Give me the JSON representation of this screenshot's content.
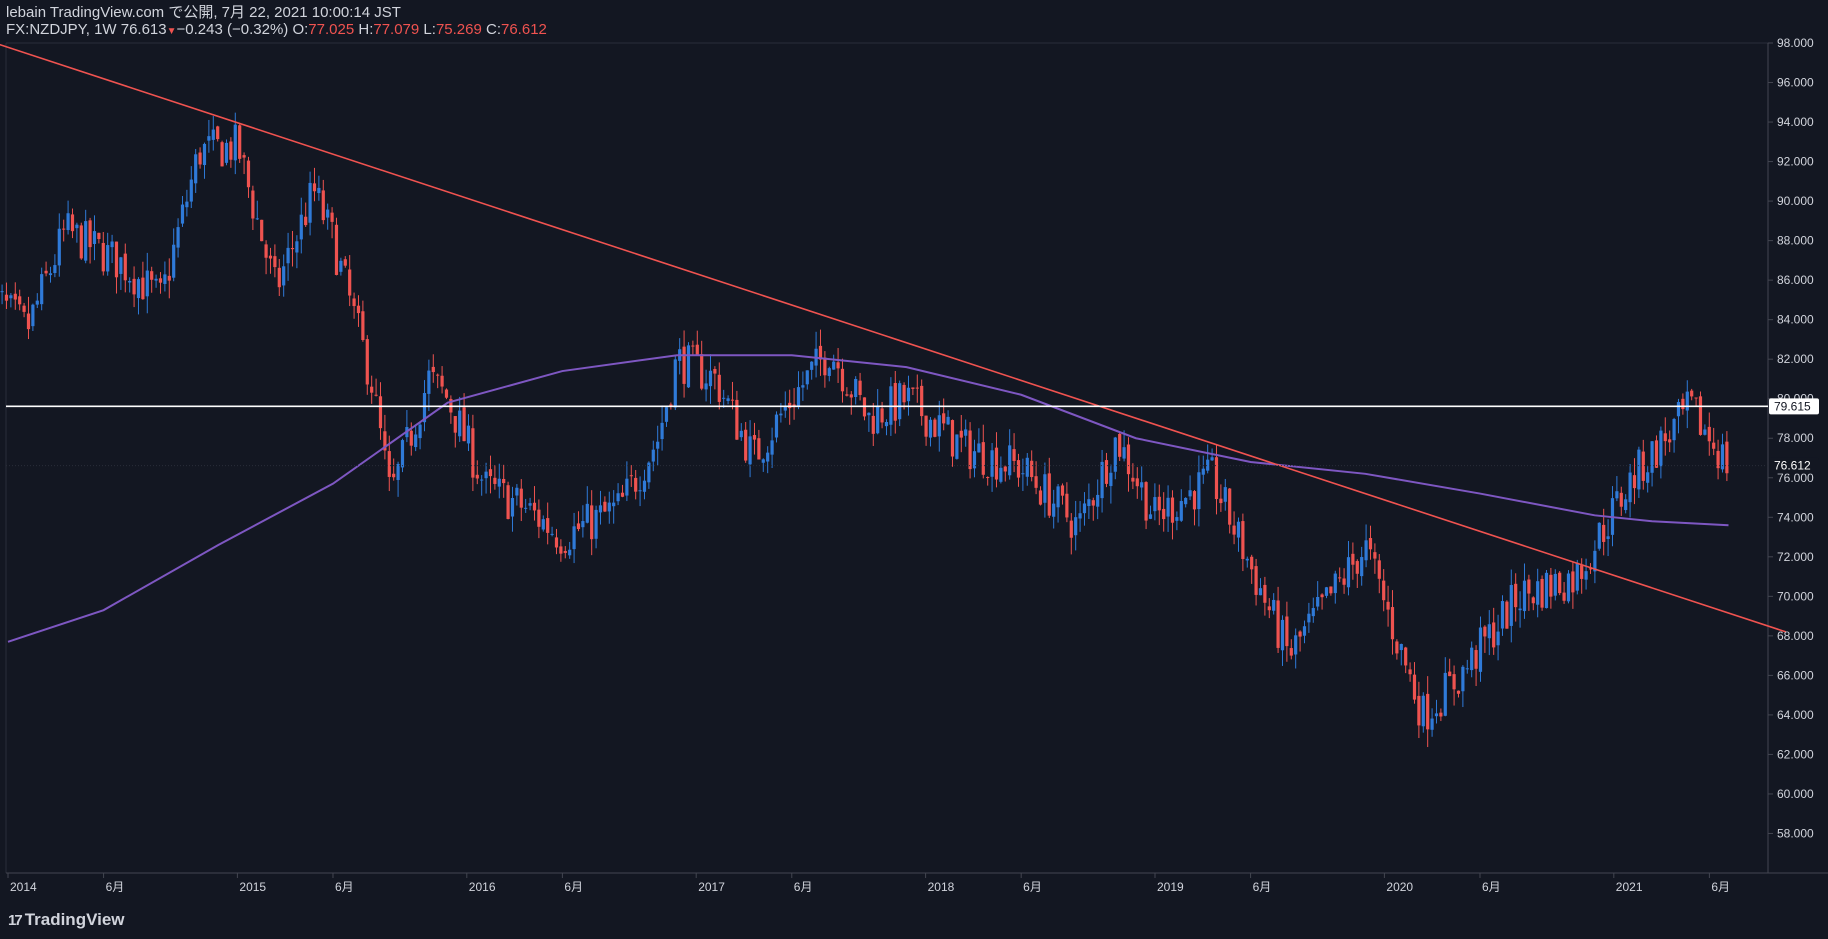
{
  "header": {
    "line1": "lebain TradingView.com で公開, 7月 22, 2021 10:00:14 JST",
    "symbol": "FX:NZDJPY, 1W 76.613",
    "change": "−0.243 (−0.32%)",
    "o_label": "O:",
    "o_value": "77.025",
    "h_label": "H:",
    "h_value": "77.079",
    "l_label": "L:",
    "l_value": "75.269",
    "c_label": "C:",
    "c_value": "76.612"
  },
  "footer": {
    "brand": "TradingView"
  },
  "colors": {
    "background": "#131722",
    "up": "#2f7ad8",
    "down": "#ef5350",
    "trendline": "#f05350",
    "ma": "#7e57c2",
    "hline": "#ffffff",
    "axis_text": "#d1d4dc"
  },
  "chart_data": {
    "type": "candlestick",
    "symbol": "FX:NZDJPY",
    "interval": "1W",
    "ylim": [
      56,
      98
    ],
    "y_ticks": [
      "98.000",
      "96.000",
      "94.000",
      "92.000",
      "90.000",
      "88.000",
      "86.000",
      "84.000",
      "82.000",
      "80.000",
      "78.000",
      "76.000",
      "74.000",
      "72.000",
      "70.000",
      "68.000",
      "66.000",
      "64.000",
      "62.000",
      "60.000",
      "58.000"
    ],
    "x_ticks": [
      "2014",
      "6月",
      "2015",
      "6月",
      "2016",
      "6月",
      "2017",
      "6月",
      "2018",
      "6月",
      "2019",
      "6月",
      "2020",
      "6月",
      "2021",
      "6月"
    ],
    "price_labels": {
      "horizontal_line": "79.615",
      "last_price": "76.612"
    },
    "trendline": {
      "from": {
        "date": "2013-12",
        "price": 98.1
      },
      "to": {
        "date": "2021-10",
        "price": 68.2
      }
    },
    "horizontal_line": 79.615,
    "moving_average": [
      [
        "2014-01",
        67.7
      ],
      [
        "2014-06",
        69.3
      ],
      [
        "2014-12",
        72.6
      ],
      [
        "2015-06",
        75.7
      ],
      [
        "2015-12",
        79.8
      ],
      [
        "2016-06",
        81.4
      ],
      [
        "2016-12",
        82.2
      ],
      [
        "2017-06",
        82.2
      ],
      [
        "2017-12",
        81.6
      ],
      [
        "2018-06",
        80.2
      ],
      [
        "2018-12",
        78.0
      ],
      [
        "2019-06",
        76.8
      ],
      [
        "2019-12",
        76.2
      ],
      [
        "2020-06",
        75.2
      ],
      [
        "2020-12",
        74.1
      ],
      [
        "2021-03",
        73.8
      ],
      [
        "2021-07",
        73.6
      ]
    ],
    "candles_approx_weekly_close": [
      [
        "2013-12",
        85.4
      ],
      [
        "2014-02",
        83.5
      ],
      [
        "2014-04",
        88.5
      ],
      [
        "2014-07",
        86.8
      ],
      [
        "2014-09",
        85.0
      ],
      [
        "2014-11",
        92.5
      ],
      [
        "2015-01",
        92.8
      ],
      [
        "2015-03",
        85.5
      ],
      [
        "2015-05",
        90.5
      ],
      [
        "2015-06",
        88.0
      ],
      [
        "2015-08",
        81.0
      ],
      [
        "2015-09",
        75.0
      ],
      [
        "2015-11",
        81.0
      ],
      [
        "2015-12",
        80.0
      ],
      [
        "2016-02",
        75.5
      ],
      [
        "2016-04",
        74.5
      ],
      [
        "2016-06",
        73.0
      ],
      [
        "2016-09",
        74.5
      ],
      [
        "2016-11",
        78.0
      ],
      [
        "2016-12",
        82.0
      ],
      [
        "2017-02",
        81.0
      ],
      [
        "2017-04",
        77.0
      ],
      [
        "2017-06",
        80.0
      ],
      [
        "2017-08",
        82.5
      ],
      [
        "2017-10",
        79.0
      ],
      [
        "2017-12",
        80.0
      ],
      [
        "2018-03",
        77.5
      ],
      [
        "2018-06",
        76.5
      ],
      [
        "2018-09",
        73.5
      ],
      [
        "2018-11",
        78.0
      ],
      [
        "2019-01",
        74.0
      ],
      [
        "2019-04",
        76.0
      ],
      [
        "2019-08",
        67.0
      ],
      [
        "2019-12",
        72.5
      ],
      [
        "2020-03",
        64.0
      ],
      [
        "2020-05",
        66.0
      ],
      [
        "2020-08",
        70.0
      ],
      [
        "2020-11",
        71.0
      ],
      [
        "2021-02",
        76.0
      ],
      [
        "2021-05",
        79.5
      ],
      [
        "2021-07",
        76.6
      ]
    ]
  }
}
